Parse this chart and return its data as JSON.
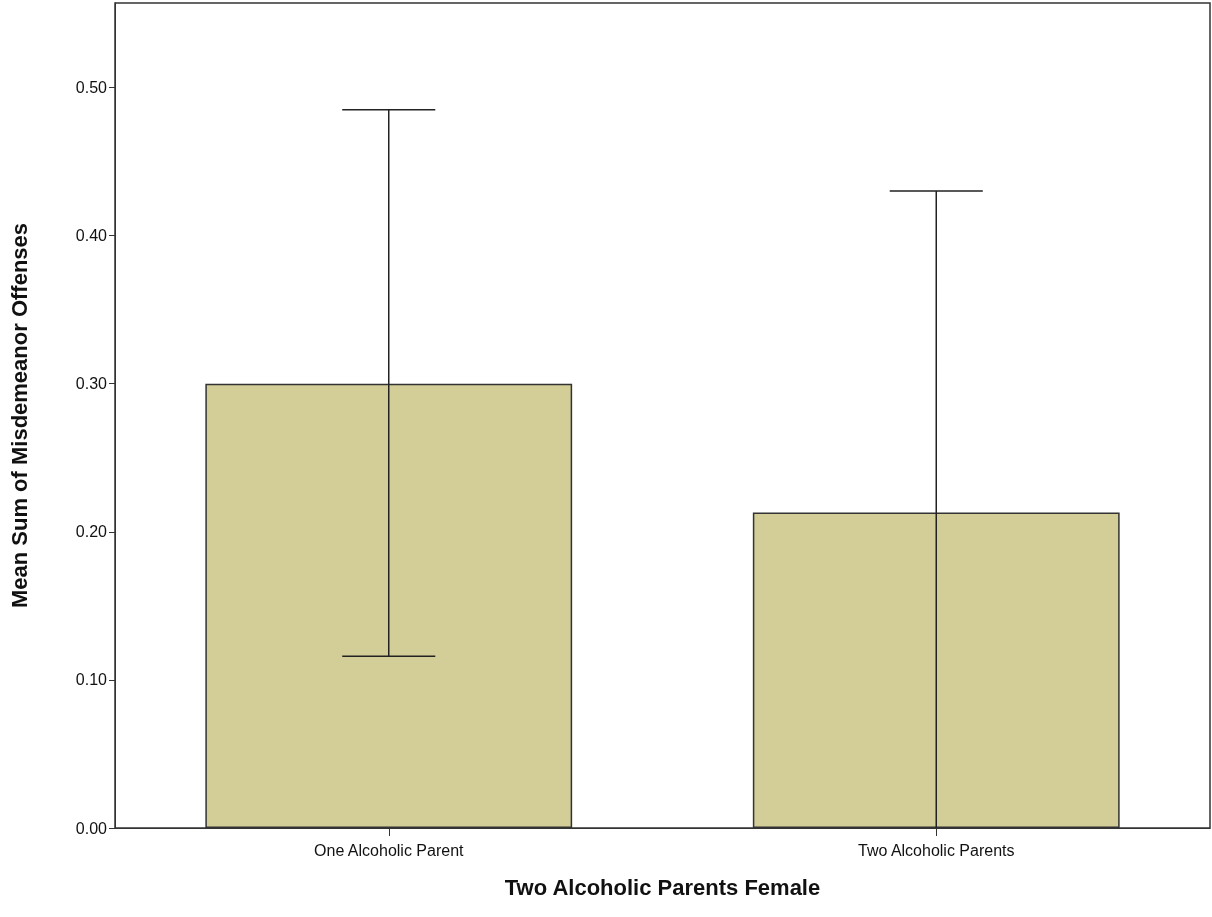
{
  "chart_data": {
    "type": "bar",
    "xlabel": "Two Alcoholic Parents Female",
    "ylabel": "Mean Sum of Misdemeanor Offenses",
    "categories": [
      "One Alcoholic Parent",
      "Two Alcoholic Parents"
    ],
    "values": [
      0.3,
      0.213
    ],
    "errors": [
      [
        0.116,
        0.485
      ],
      [
        0.0,
        0.43
      ]
    ],
    "color": "#d3ce97",
    "ylim": [
      0,
      0.557
    ],
    "yticks": [
      {
        "value": 0,
        "label": "0.00"
      },
      {
        "value": 0.1,
        "label": "0.10"
      },
      {
        "value": 0.2,
        "label": "0.20"
      },
      {
        "value": 0.3,
        "label": "0.30"
      },
      {
        "value": 0.4,
        "label": "0.40"
      },
      {
        "value": 0.5,
        "label": "0.50"
      }
    ],
    "grid": false
  }
}
